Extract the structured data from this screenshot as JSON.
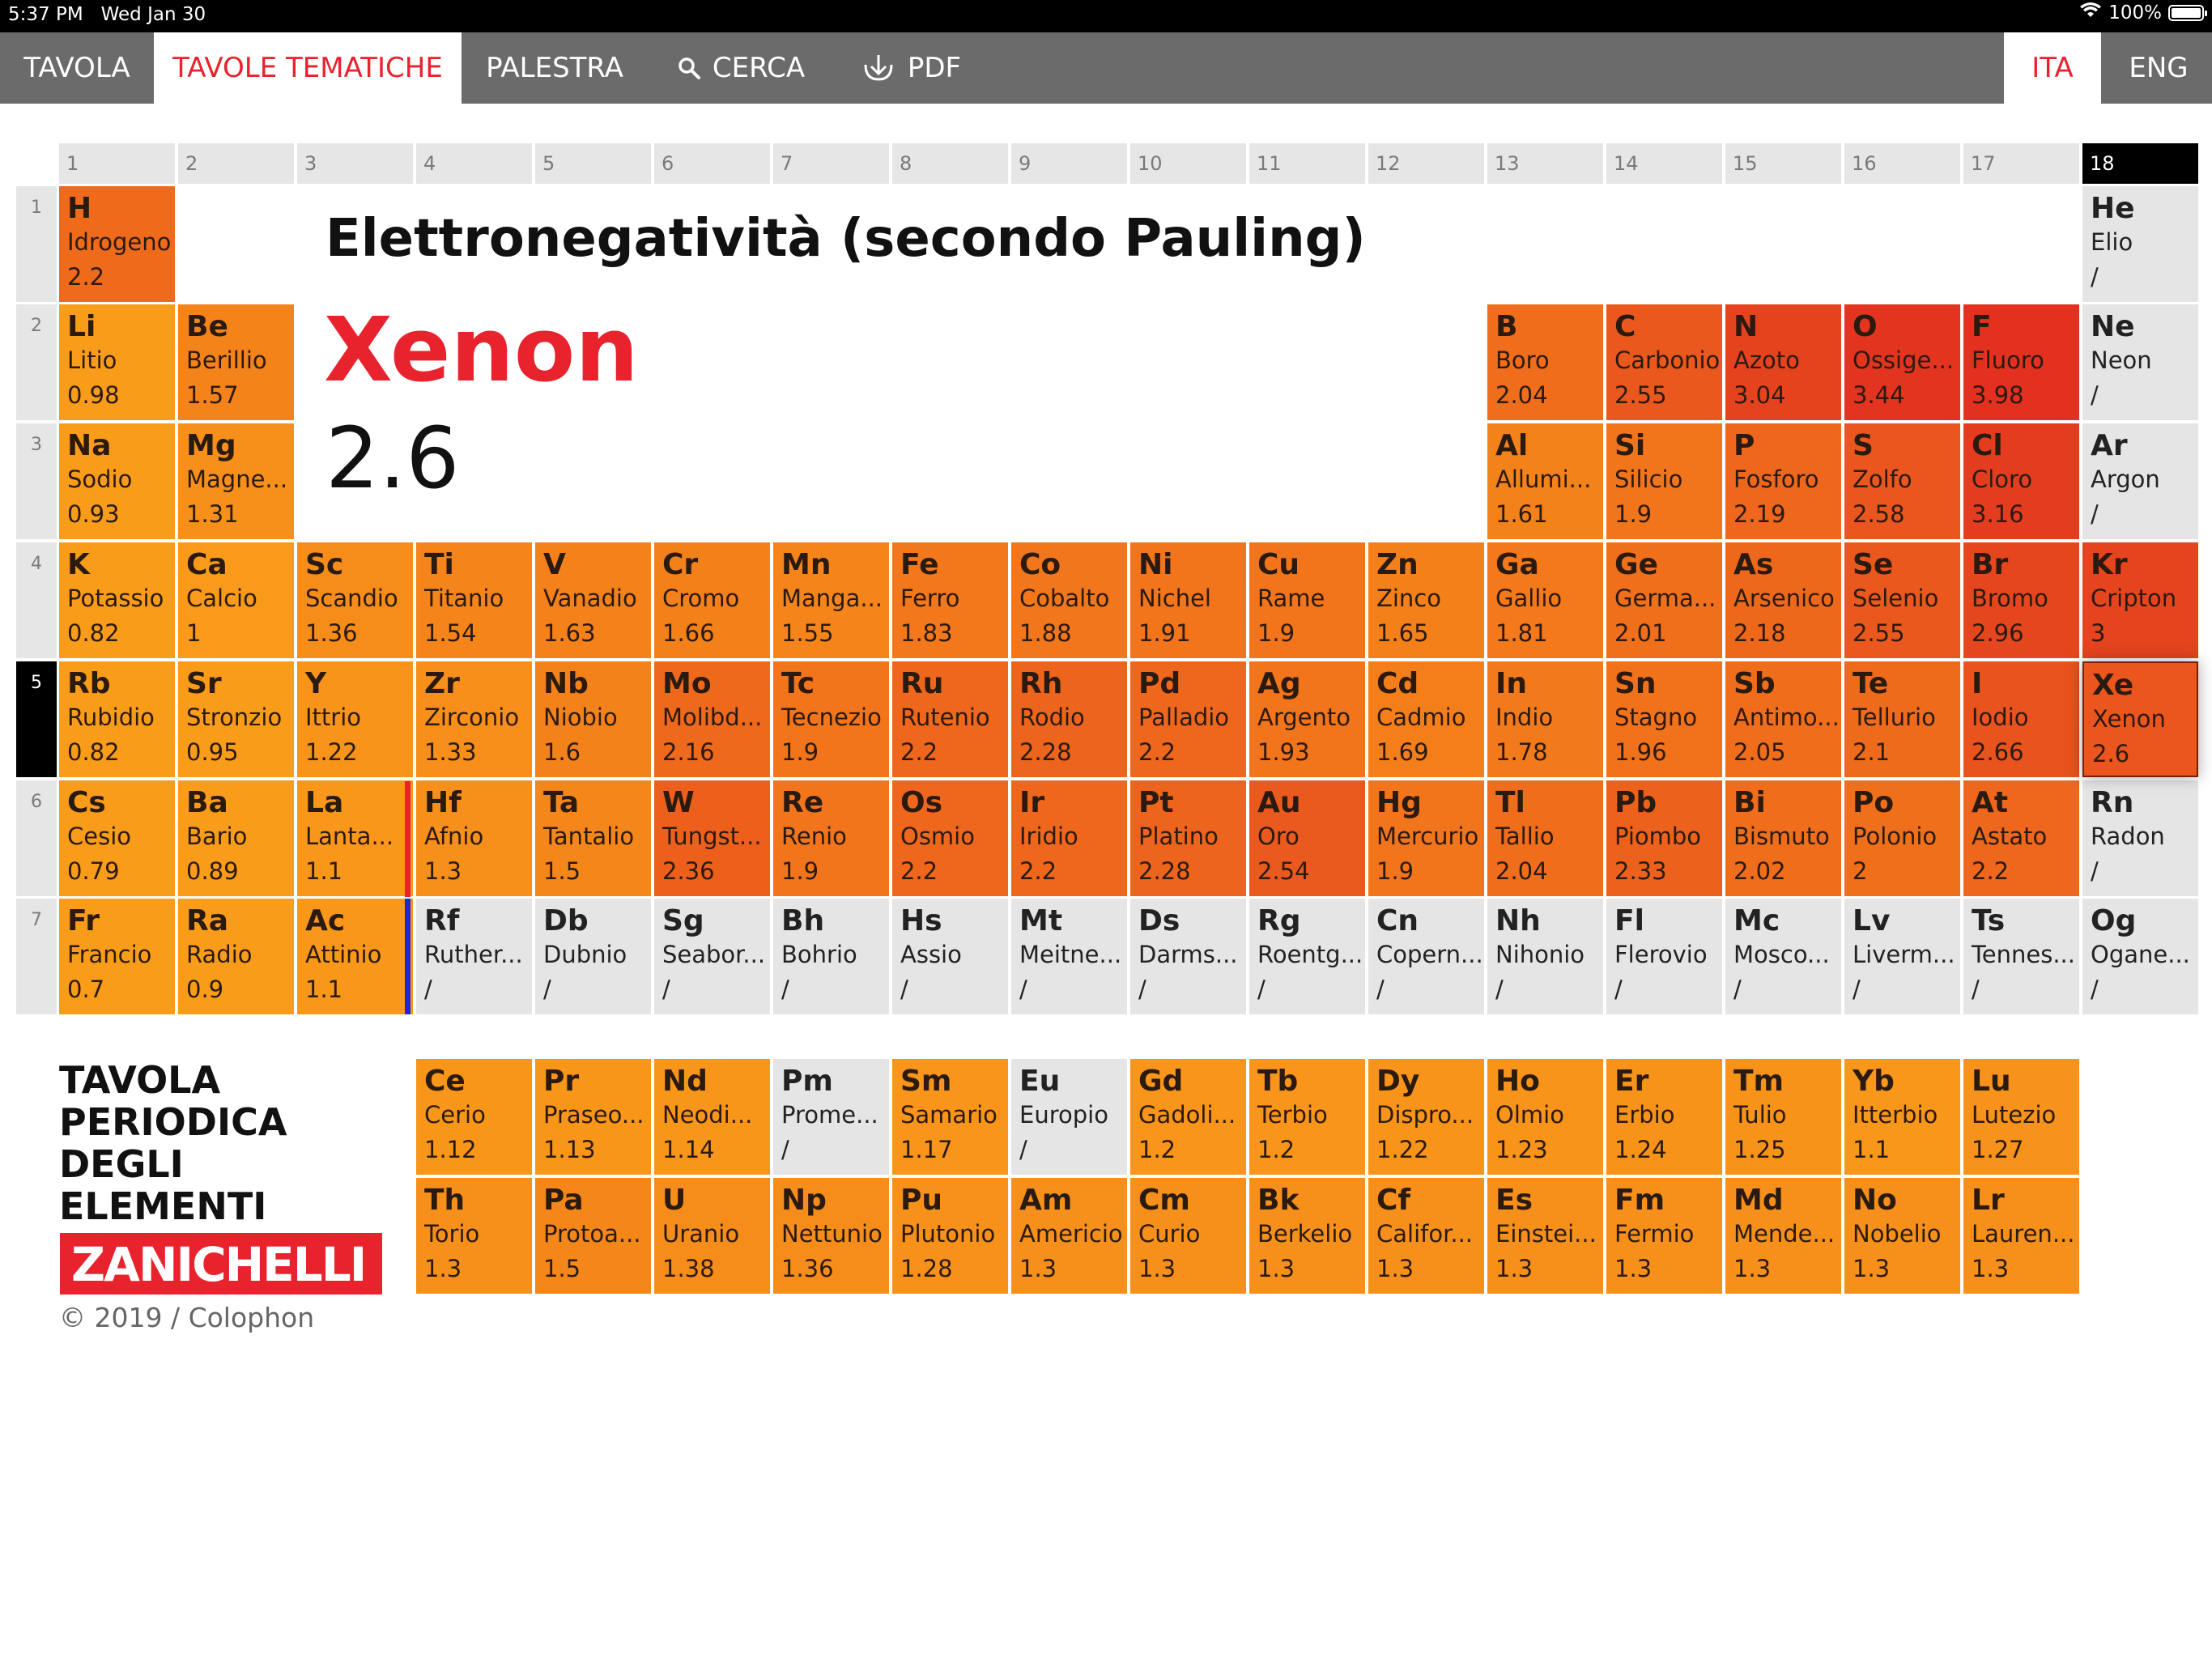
{
  "status_bar": {
    "time": "5:37 PM",
    "date": "Wed Jan 30",
    "battery": "100%"
  },
  "nav": {
    "tabs": [
      "TAVOLA",
      "TAVOLE TEMATICHE",
      "PALESTRA",
      "CERCA",
      "PDF"
    ],
    "active_tab": "TAVOLE TEMATICHE",
    "languages": [
      "ITA",
      "ENG"
    ],
    "active_language": "ITA"
  },
  "theme": {
    "title": "Elettronegatività (secondo Pauling)",
    "selected_name": "Xenon",
    "selected_value": "2.6"
  },
  "groups": [
    "1",
    "2",
    "3",
    "4",
    "5",
    "6",
    "7",
    "8",
    "9",
    "10",
    "11",
    "12",
    "13",
    "14",
    "15",
    "16",
    "17",
    "18"
  ],
  "active_group": "18",
  "periods": [
    "1",
    "2",
    "3",
    "4",
    "5",
    "6",
    "7"
  ],
  "active_period": "5",
  "elements": [
    {
      "sym": "H",
      "name": "Idrogeno",
      "value": "2.2",
      "row": 1,
      "col": 1,
      "color": "#ef6a1b"
    },
    {
      "sym": "He",
      "name": "Elio",
      "value": "/",
      "row": 1,
      "col": 18,
      "color": "#e5e5e5"
    },
    {
      "sym": "Li",
      "name": "Litio",
      "value": "0.98",
      "row": 2,
      "col": 1,
      "color": "#f99c1a"
    },
    {
      "sym": "Be",
      "name": "Berillio",
      "value": "1.57",
      "row": 2,
      "col": 2,
      "color": "#f4831a"
    },
    {
      "sym": "B",
      "name": "Boro",
      "value": "2.04",
      "row": 2,
      "col": 13,
      "color": "#ef6d1b"
    },
    {
      "sym": "C",
      "name": "Carbonio",
      "value": "2.55",
      "row": 2,
      "col": 14,
      "color": "#ea581d"
    },
    {
      "sym": "N",
      "name": "Azoto",
      "value": "3.04",
      "row": 2,
      "col": 15,
      "color": "#e5421e"
    },
    {
      "sym": "O",
      "name": "Ossige...",
      "value": "3.44",
      "row": 2,
      "col": 16,
      "color": "#e2341f"
    },
    {
      "sym": "F",
      "name": "Fluoro",
      "value": "3.98",
      "row": 2,
      "col": 17,
      "color": "#e3301f"
    },
    {
      "sym": "Ne",
      "name": "Neon",
      "value": "/",
      "row": 2,
      "col": 18,
      "color": "#e5e5e5"
    },
    {
      "sym": "Na",
      "name": "Sodio",
      "value": "0.93",
      "row": 3,
      "col": 1,
      "color": "#f99c1a"
    },
    {
      "sym": "Mg",
      "name": "Magne...",
      "value": "1.31",
      "row": 3,
      "col": 2,
      "color": "#f7901a"
    },
    {
      "sym": "Al",
      "name": "Allumi...",
      "value": "1.61",
      "row": 3,
      "col": 13,
      "color": "#f4821a"
    },
    {
      "sym": "Si",
      "name": "Silicio",
      "value": "1.9",
      "row": 3,
      "col": 14,
      "color": "#f2751b"
    },
    {
      "sym": "P",
      "name": "Fosforo",
      "value": "2.19",
      "row": 3,
      "col": 15,
      "color": "#ee671c"
    },
    {
      "sym": "S",
      "name": "Zolfo",
      "value": "2.58",
      "row": 3,
      "col": 16,
      "color": "#ea561d"
    },
    {
      "sym": "Cl",
      "name": "Cloro",
      "value": "3.16",
      "row": 3,
      "col": 17,
      "color": "#e43c1e"
    },
    {
      "sym": "Ar",
      "name": "Argon",
      "value": "/",
      "row": 3,
      "col": 18,
      "color": "#e5e5e5"
    },
    {
      "sym": "K",
      "name": "Potassio",
      "value": "0.82",
      "row": 4,
      "col": 1,
      "color": "#f99c1a"
    },
    {
      "sym": "Ca",
      "name": "Calcio",
      "value": "1",
      "row": 4,
      "col": 2,
      "color": "#f99a1a"
    },
    {
      "sym": "Sc",
      "name": "Scandio",
      "value": "1.36",
      "row": 4,
      "col": 3,
      "color": "#f68d1a"
    },
    {
      "sym": "Ti",
      "name": "Titanio",
      "value": "1.54",
      "row": 4,
      "col": 4,
      "color": "#f5851a"
    },
    {
      "sym": "V",
      "name": "Vanadio",
      "value": "1.63",
      "row": 4,
      "col": 5,
      "color": "#f4811a"
    },
    {
      "sym": "Cr",
      "name": "Cromo",
      "value": "1.66",
      "row": 4,
      "col": 6,
      "color": "#f4801a"
    },
    {
      "sym": "Mn",
      "name": "Manga...",
      "value": "1.55",
      "row": 4,
      "col": 7,
      "color": "#f5851a"
    },
    {
      "sym": "Fe",
      "name": "Ferro",
      "value": "1.83",
      "row": 4,
      "col": 8,
      "color": "#f2781b"
    },
    {
      "sym": "Co",
      "name": "Cobalto",
      "value": "1.88",
      "row": 4,
      "col": 9,
      "color": "#f2761b"
    },
    {
      "sym": "Ni",
      "name": "Nichel",
      "value": "1.91",
      "row": 4,
      "col": 10,
      "color": "#f2751b"
    },
    {
      "sym": "Cu",
      "name": "Rame",
      "value": "1.9",
      "row": 4,
      "col": 11,
      "color": "#f2751b"
    },
    {
      "sym": "Zn",
      "name": "Zinco",
      "value": "1.65",
      "row": 4,
      "col": 12,
      "color": "#f4801a"
    },
    {
      "sym": "Ga",
      "name": "Gallio",
      "value": "1.81",
      "row": 4,
      "col": 13,
      "color": "#f3791b"
    },
    {
      "sym": "Ge",
      "name": "Germa...",
      "value": "2.01",
      "row": 4,
      "col": 14,
      "color": "#f06f1b"
    },
    {
      "sym": "As",
      "name": "Arsenico",
      "value": "2.18",
      "row": 4,
      "col": 15,
      "color": "#ee681c"
    },
    {
      "sym": "Se",
      "name": "Selenio",
      "value": "2.55",
      "row": 4,
      "col": 16,
      "color": "#ea581d"
    },
    {
      "sym": "Br",
      "name": "Bromo",
      "value": "2.96",
      "row": 4,
      "col": 17,
      "color": "#e6461e"
    },
    {
      "sym": "Kr",
      "name": "Cripton",
      "value": "3",
      "row": 4,
      "col": 18,
      "color": "#e5441e"
    },
    {
      "sym": "Rb",
      "name": "Rubidio",
      "value": "0.82",
      "row": 5,
      "col": 1,
      "color": "#f99c1a"
    },
    {
      "sym": "Sr",
      "name": "Stronzio",
      "value": "0.95",
      "row": 5,
      "col": 2,
      "color": "#f99c1a"
    },
    {
      "sym": "Y",
      "name": "Ittrio",
      "value": "1.22",
      "row": 5,
      "col": 3,
      "color": "#f8941a"
    },
    {
      "sym": "Zr",
      "name": "Zirconio",
      "value": "1.33",
      "row": 5,
      "col": 4,
      "color": "#f78f1a"
    },
    {
      "sym": "Nb",
      "name": "Niobio",
      "value": "1.6",
      "row": 5,
      "col": 5,
      "color": "#f4821a"
    },
    {
      "sym": "Mo",
      "name": "Molibd...",
      "value": "2.16",
      "row": 5,
      "col": 6,
      "color": "#ee691c"
    },
    {
      "sym": "Tc",
      "name": "Tecnezio",
      "value": "1.9",
      "row": 5,
      "col": 7,
      "color": "#f2751b"
    },
    {
      "sym": "Ru",
      "name": "Rutenio",
      "value": "2.2",
      "row": 5,
      "col": 8,
      "color": "#ee671c"
    },
    {
      "sym": "Rh",
      "name": "Rodio",
      "value": "2.28",
      "row": 5,
      "col": 9,
      "color": "#ed641c"
    },
    {
      "sym": "Pd",
      "name": "Palladio",
      "value": "2.2",
      "row": 5,
      "col": 10,
      "color": "#ee671c"
    },
    {
      "sym": "Ag",
      "name": "Argento",
      "value": "1.93",
      "row": 5,
      "col": 11,
      "color": "#f2741b"
    },
    {
      "sym": "Cd",
      "name": "Cadmio",
      "value": "1.69",
      "row": 5,
      "col": 12,
      "color": "#f47e1a"
    },
    {
      "sym": "In",
      "name": "Indio",
      "value": "1.78",
      "row": 5,
      "col": 13,
      "color": "#f37a1b"
    },
    {
      "sym": "Sn",
      "name": "Stagno",
      "value": "1.96",
      "row": 5,
      "col": 14,
      "color": "#f1721b"
    },
    {
      "sym": "Sb",
      "name": "Antimo...",
      "value": "2.05",
      "row": 5,
      "col": 15,
      "color": "#f06d1b"
    },
    {
      "sym": "Te",
      "name": "Tellurio",
      "value": "2.1",
      "row": 5,
      "col": 16,
      "color": "#ef6b1c"
    },
    {
      "sym": "I",
      "name": "Iodio",
      "value": "2.66",
      "row": 5,
      "col": 17,
      "color": "#e9531d"
    },
    {
      "sym": "Xe",
      "name": "Xenon",
      "value": "2.6",
      "row": 5,
      "col": 18,
      "color": "#ea561d",
      "selected": true
    },
    {
      "sym": "Cs",
      "name": "Cesio",
      "value": "0.79",
      "row": 6,
      "col": 1,
      "color": "#f99c1a"
    },
    {
      "sym": "Ba",
      "name": "Bario",
      "value": "0.89",
      "row": 6,
      "col": 2,
      "color": "#f99c1a"
    },
    {
      "sym": "La",
      "name": "Lanta...",
      "value": "1.1",
      "row": 6,
      "col": 3,
      "color": "#f8971a"
    },
    {
      "sym": "Hf",
      "name": "Afnio",
      "value": "1.3",
      "row": 6,
      "col": 4,
      "color": "#f7901a"
    },
    {
      "sym": "Ta",
      "name": "Tantalio",
      "value": "1.5",
      "row": 6,
      "col": 5,
      "color": "#f5871a"
    },
    {
      "sym": "W",
      "name": "Tungst...",
      "value": "2.36",
      "row": 6,
      "col": 6,
      "color": "#ec601c"
    },
    {
      "sym": "Re",
      "name": "Renio",
      "value": "1.9",
      "row": 6,
      "col": 7,
      "color": "#f2751b"
    },
    {
      "sym": "Os",
      "name": "Osmio",
      "value": "2.2",
      "row": 6,
      "col": 8,
      "color": "#ee671c"
    },
    {
      "sym": "Ir",
      "name": "Iridio",
      "value": "2.2",
      "row": 6,
      "col": 9,
      "color": "#ee671c"
    },
    {
      "sym": "Pt",
      "name": "Platino",
      "value": "2.28",
      "row": 6,
      "col": 10,
      "color": "#ed641c"
    },
    {
      "sym": "Au",
      "name": "Oro",
      "value": "2.54",
      "row": 6,
      "col": 11,
      "color": "#ea591d"
    },
    {
      "sym": "Hg",
      "name": "Mercurio",
      "value": "1.9",
      "row": 6,
      "col": 12,
      "color": "#f2751b"
    },
    {
      "sym": "Tl",
      "name": "Tallio",
      "value": "2.04",
      "row": 6,
      "col": 13,
      "color": "#ef6d1b"
    },
    {
      "sym": "Pb",
      "name": "Piombo",
      "value": "2.33",
      "row": 6,
      "col": 14,
      "color": "#ec621c"
    },
    {
      "sym": "Bi",
      "name": "Bismuto",
      "value": "2.02",
      "row": 6,
      "col": 15,
      "color": "#f06e1b"
    },
    {
      "sym": "Po",
      "name": "Polonio",
      "value": "2",
      "row": 6,
      "col": 16,
      "color": "#f06f1b"
    },
    {
      "sym": "At",
      "name": "Astato",
      "value": "2.2",
      "row": 6,
      "col": 17,
      "color": "#ee671c"
    },
    {
      "sym": "Rn",
      "name": "Radon",
      "value": "/",
      "row": 6,
      "col": 18,
      "color": "#e5e5e5"
    },
    {
      "sym": "Fr",
      "name": "Francio",
      "value": "0.7",
      "row": 7,
      "col": 1,
      "color": "#f99c1a"
    },
    {
      "sym": "Ra",
      "name": "Radio",
      "value": "0.9",
      "row": 7,
      "col": 2,
      "color": "#f99c1a"
    },
    {
      "sym": "Ac",
      "name": "Attinio",
      "value": "1.1",
      "row": 7,
      "col": 3,
      "color": "#f8971a"
    },
    {
      "sym": "Rf",
      "name": "Ruther...",
      "value": "/",
      "row": 7,
      "col": 4,
      "color": "#e5e5e5"
    },
    {
      "sym": "Db",
      "name": "Dubnio",
      "value": "/",
      "row": 7,
      "col": 5,
      "color": "#e5e5e5"
    },
    {
      "sym": "Sg",
      "name": "Seabor...",
      "value": "/",
      "row": 7,
      "col": 6,
      "color": "#e5e5e5"
    },
    {
      "sym": "Bh",
      "name": "Bohrio",
      "value": "/",
      "row": 7,
      "col": 7,
      "color": "#e5e5e5"
    },
    {
      "sym": "Hs",
      "name": "Assio",
      "value": "/",
      "row": 7,
      "col": 8,
      "color": "#e5e5e5"
    },
    {
      "sym": "Mt",
      "name": "Meitne...",
      "value": "/",
      "row": 7,
      "col": 9,
      "color": "#e5e5e5"
    },
    {
      "sym": "Ds",
      "name": "Darms...",
      "value": "/",
      "row": 7,
      "col": 10,
      "color": "#e5e5e5"
    },
    {
      "sym": "Rg",
      "name": "Roentg...",
      "value": "/",
      "row": 7,
      "col": 11,
      "color": "#e5e5e5"
    },
    {
      "sym": "Cn",
      "name": "Copern...",
      "value": "/",
      "row": 7,
      "col": 12,
      "color": "#e5e5e5"
    },
    {
      "sym": "Nh",
      "name": "Nihonio",
      "value": "/",
      "row": 7,
      "col": 13,
      "color": "#e5e5e5"
    },
    {
      "sym": "Fl",
      "name": "Flerovio",
      "value": "/",
      "row": 7,
      "col": 14,
      "color": "#e5e5e5"
    },
    {
      "sym": "Mc",
      "name": "Mosco...",
      "value": "/",
      "row": 7,
      "col": 15,
      "color": "#e5e5e5"
    },
    {
      "sym": "Lv",
      "name": "Liverm...",
      "value": "/",
      "row": 7,
      "col": 16,
      "color": "#e5e5e5"
    },
    {
      "sym": "Ts",
      "name": "Tennes...",
      "value": "/",
      "row": 7,
      "col": 17,
      "color": "#e5e5e5"
    },
    {
      "sym": "Og",
      "name": "Ogane...",
      "value": "/",
      "row": 7,
      "col": 18,
      "color": "#e5e5e5"
    },
    {
      "sym": "Ce",
      "name": "Cerio",
      "value": "1.12",
      "row": 9,
      "col": 4,
      "color": "#f8961a"
    },
    {
      "sym": "Pr",
      "name": "Praseo...",
      "value": "1.13",
      "row": 9,
      "col": 5,
      "color": "#f8961a"
    },
    {
      "sym": "Nd",
      "name": "Neodi...",
      "value": "1.14",
      "row": 9,
      "col": 6,
      "color": "#f8961a"
    },
    {
      "sym": "Pm",
      "name": "Prome...",
      "value": "/",
      "row": 9,
      "col": 7,
      "color": "#e5e5e5"
    },
    {
      "sym": "Sm",
      "name": "Samario",
      "value": "1.17",
      "row": 9,
      "col": 8,
      "color": "#f8951a"
    },
    {
      "sym": "Eu",
      "name": "Europio",
      "value": "/",
      "row": 9,
      "col": 9,
      "color": "#e5e5e5"
    },
    {
      "sym": "Gd",
      "name": "Gadoli...",
      "value": "1.2",
      "row": 9,
      "col": 10,
      "color": "#f8951a"
    },
    {
      "sym": "Tb",
      "name": "Terbio",
      "value": "1.2",
      "row": 9,
      "col": 11,
      "color": "#f8951a"
    },
    {
      "sym": "Dy",
      "name": "Dispro...",
      "value": "1.22",
      "row": 9,
      "col": 12,
      "color": "#f8941a"
    },
    {
      "sym": "Ho",
      "name": "Olmio",
      "value": "1.23",
      "row": 9,
      "col": 13,
      "color": "#f8941a"
    },
    {
      "sym": "Er",
      "name": "Erbio",
      "value": "1.24",
      "row": 9,
      "col": 14,
      "color": "#f8931a"
    },
    {
      "sym": "Tm",
      "name": "Tulio",
      "value": "1.25",
      "row": 9,
      "col": 15,
      "color": "#f8931a"
    },
    {
      "sym": "Yb",
      "name": "Itterbio",
      "value": "1.1",
      "row": 9,
      "col": 16,
      "color": "#f8971a"
    },
    {
      "sym": "Lu",
      "name": "Lutezio",
      "value": "1.27",
      "row": 9,
      "col": 17,
      "color": "#f7921a"
    },
    {
      "sym": "Th",
      "name": "Torio",
      "value": "1.3",
      "row": 10,
      "col": 4,
      "color": "#f7901a"
    },
    {
      "sym": "Pa",
      "name": "Protoa...",
      "value": "1.5",
      "row": 10,
      "col": 5,
      "color": "#f5871a"
    },
    {
      "sym": "U",
      "name": "Uranio",
      "value": "1.38",
      "row": 10,
      "col": 6,
      "color": "#f68d1a"
    },
    {
      "sym": "Np",
      "name": "Nettunio",
      "value": "1.36",
      "row": 10,
      "col": 7,
      "color": "#f68d1a"
    },
    {
      "sym": "Pu",
      "name": "Plutonio",
      "value": "1.28",
      "row": 10,
      "col": 8,
      "color": "#f7911a"
    },
    {
      "sym": "Am",
      "name": "Americio",
      "value": "1.3",
      "row": 10,
      "col": 9,
      "color": "#f7901a"
    },
    {
      "sym": "Cm",
      "name": "Curio",
      "value": "1.3",
      "row": 10,
      "col": 10,
      "color": "#f7901a"
    },
    {
      "sym": "Bk",
      "name": "Berkelio",
      "value": "1.3",
      "row": 10,
      "col": 11,
      "color": "#f7901a"
    },
    {
      "sym": "Cf",
      "name": "Califor...",
      "value": "1.3",
      "row": 10,
      "col": 12,
      "color": "#f7901a"
    },
    {
      "sym": "Es",
      "name": "Einstei...",
      "value": "1.3",
      "row": 10,
      "col": 13,
      "color": "#f7901a"
    },
    {
      "sym": "Fm",
      "name": "Fermio",
      "value": "1.3",
      "row": 10,
      "col": 14,
      "color": "#f7901a"
    },
    {
      "sym": "Md",
      "name": "Mende...",
      "value": "1.3",
      "row": 10,
      "col": 15,
      "color": "#f7901a"
    },
    {
      "sym": "No",
      "name": "Nobelio",
      "value": "1.3",
      "row": 10,
      "col": 16,
      "color": "#f7901a"
    },
    {
      "sym": "Lr",
      "name": "Lauren...",
      "value": "1.3",
      "row": 10,
      "col": 17,
      "color": "#f7901a"
    }
  ],
  "brand": {
    "title_lines": [
      "TAVOLA",
      "PERIODICA",
      "DEGLI ELEMENTI"
    ],
    "logo": "ZANICHELLI",
    "copyright": "© 2019 / Colophon"
  }
}
